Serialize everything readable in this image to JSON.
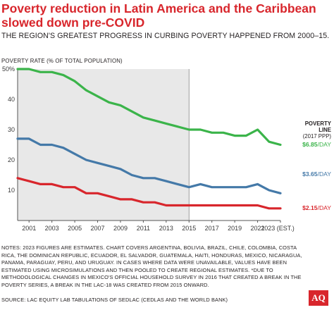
{
  "title": "Poverty reduction in Latin America and the Caribbean slowed down pre-COVID",
  "subtitle": "THE REGION'S GREATEST PROGRESS IN CURBING POVERTY HAPPENED FROM 2000–15.",
  "ylabel": "POVERTY RATE (% OF TOTAL POPULATION)",
  "poverty_line_label": {
    "line1": "POVERTY",
    "line2": "LINE",
    "line3": "(2017 PPP)"
  },
  "notes": "NOTES: 2023 FIGURES ARE ESTIMATES. CHART COVERS ARGENTINA, BOLIVIA, BRAZIL, CHILE, COLOMBIA, COSTA RICA, THE DOMINICAN REPUBLIC, ECUADOR, EL SALVADOR, GUATEMALA, HAITI, HONDURAS, MEXICO, NICARAGUA, PANAMA, PARAGUAY, PERU, AND URUGUAY. IN CASES WHERE DATA WERE UNAVAILABLE, VALUES HAVE BEEN ESTIMATED USING MICROSIMULATIONS AND THEN POOLED TO CREATE REGIONAL ESTIMATES. *DUE TO METHODOLOGICAL CHANGES IN MEXICO'S OFFICIAL HOUSEHOLD SURVEY IN 2016 THAT CREATED A BREAK IN THE POVERTY SERIES, A BREAK IN THE LAC-18 WAS CREATED FROM 2015 ONWARD.",
  "source": "SOURCE: LAC EQUITY LAB TABULATIONS OF SEDLAC (CEDLAS AND THE WORLD BANK)",
  "logo": "AQ",
  "colors": {
    "accent": "#d8262c",
    "shade": "#e8e8e8",
    "axis": "#555555"
  },
  "chart_data": {
    "type": "line",
    "title": "Poverty reduction in Latin America and the Caribbean slowed down pre-COVID",
    "ylabel": "POVERTY RATE (% OF TOTAL POPULATION)",
    "xlabel": "",
    "x": [
      2000,
      2001,
      2002,
      2003,
      2004,
      2005,
      2006,
      2007,
      2008,
      2009,
      2010,
      2011,
      2012,
      2013,
      2014,
      2015,
      2016,
      2017,
      2018,
      2019,
      2020,
      2021,
      2022,
      2023
    ],
    "x_tick_labels": [
      "2001",
      "2003",
      "2005",
      "2007",
      "2009",
      "2011",
      "2013",
      "2015",
      "2017",
      "2019",
      "2021",
      "2023 (EST.)"
    ],
    "x_tick_values": [
      2001,
      2003,
      2005,
      2007,
      2009,
      2011,
      2013,
      2015,
      2017,
      2019,
      2021,
      2023
    ],
    "y_ticks": [
      10,
      20,
      30,
      40
    ],
    "y_top_label": "50%",
    "ylim": [
      0,
      50
    ],
    "shaded_period": [
      2000,
      2015
    ],
    "grid": false,
    "series": [
      {
        "name": "$6.85/DAY",
        "name_bold": "$6.85",
        "name_rest": "/DAY",
        "color": "#3bb44a",
        "values": [
          50,
          50,
          49,
          49,
          48,
          46,
          43,
          41,
          39,
          38,
          36,
          34,
          33,
          32,
          31,
          30,
          30,
          29,
          29,
          28,
          28,
          30,
          26,
          25
        ]
      },
      {
        "name": "$3.65/DAY",
        "name_bold": "$3.65",
        "name_rest": "/DAY",
        "color": "#4479a8",
        "values": [
          27,
          27,
          25,
          25,
          24,
          22,
          20,
          19,
          18,
          17,
          15,
          14,
          14,
          13,
          12,
          11,
          12,
          11,
          11,
          11,
          11,
          12,
          10,
          9
        ]
      },
      {
        "name": "$2.15/DAY",
        "name_bold": "$2.15",
        "name_rest": "/DAY",
        "color": "#d8262c",
        "values": [
          14,
          13,
          12,
          12,
          11,
          11,
          9,
          9,
          8,
          7,
          7,
          6,
          6,
          5,
          5,
          5,
          5,
          5,
          5,
          5,
          5,
          5,
          4,
          4
        ]
      }
    ]
  }
}
